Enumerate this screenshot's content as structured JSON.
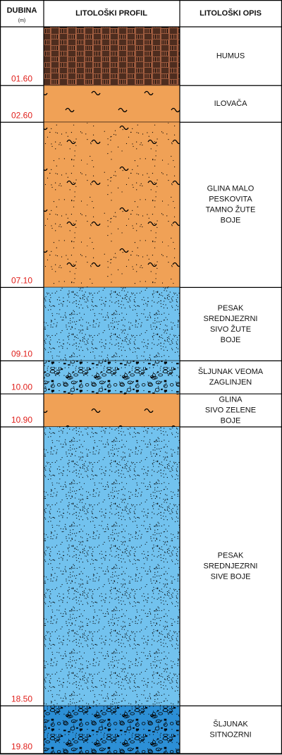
{
  "header": {
    "depth_title": "DUBINA",
    "depth_unit": "(m)",
    "profile_title": "LITOLOŠKI PROFIL",
    "description_title": "LITOLOŠKI OPIS"
  },
  "layers": [
    {
      "depth": {
        "value": 1.6,
        "label": "01.60"
      },
      "description": [
        "HUMUS"
      ],
      "color": "#9b5a3e",
      "texture": "hatch"
    },
    {
      "depth": {
        "value": 2.6,
        "label": "02.60"
      },
      "description": [
        "ILOVAČA"
      ],
      "color": "#f0a156",
      "texture": "tilde"
    },
    {
      "depth": {
        "value": 7.1,
        "label": "07.10"
      },
      "description": [
        "GLINA MALO",
        "PESKOVITA",
        "TAMNO ŽUTE",
        "BOJE"
      ],
      "color": "#f0a156",
      "texture": "tilde-dots"
    },
    {
      "depth": {
        "value": 9.1,
        "label": "09.10"
      },
      "description": [
        "PESAK",
        "SREDNJEZRNI",
        "SIVO ŽUTE",
        "BOJE"
      ],
      "color": "#72c2ee",
      "texture": "dots"
    },
    {
      "depth": {
        "value": 10.0,
        "label": "10.00"
      },
      "description": [
        "ŠLJUNAK VEOMA",
        "ZAGLINJEN"
      ],
      "color": "#72c2ee",
      "texture": "gravel"
    },
    {
      "depth": {
        "value": 10.9,
        "label": "10.90"
      },
      "description": [
        "GLINA",
        "SIVO ZELENE",
        "BOJE"
      ],
      "color": "#f0a156",
      "texture": "tilde"
    },
    {
      "depth": {
        "value": 18.5,
        "label": "18.50"
      },
      "description": [
        "PESAK",
        "SREDNJEZRNI",
        "SIVE BOJE"
      ],
      "color": "#72c2ee",
      "texture": "dots"
    },
    {
      "depth": {
        "value": 19.8,
        "label": "19.80"
      },
      "description": [
        "ŠLJUNAK",
        "SITNOZRNI"
      ],
      "color": "#2c8fd6",
      "texture": "gravel"
    }
  ]
}
